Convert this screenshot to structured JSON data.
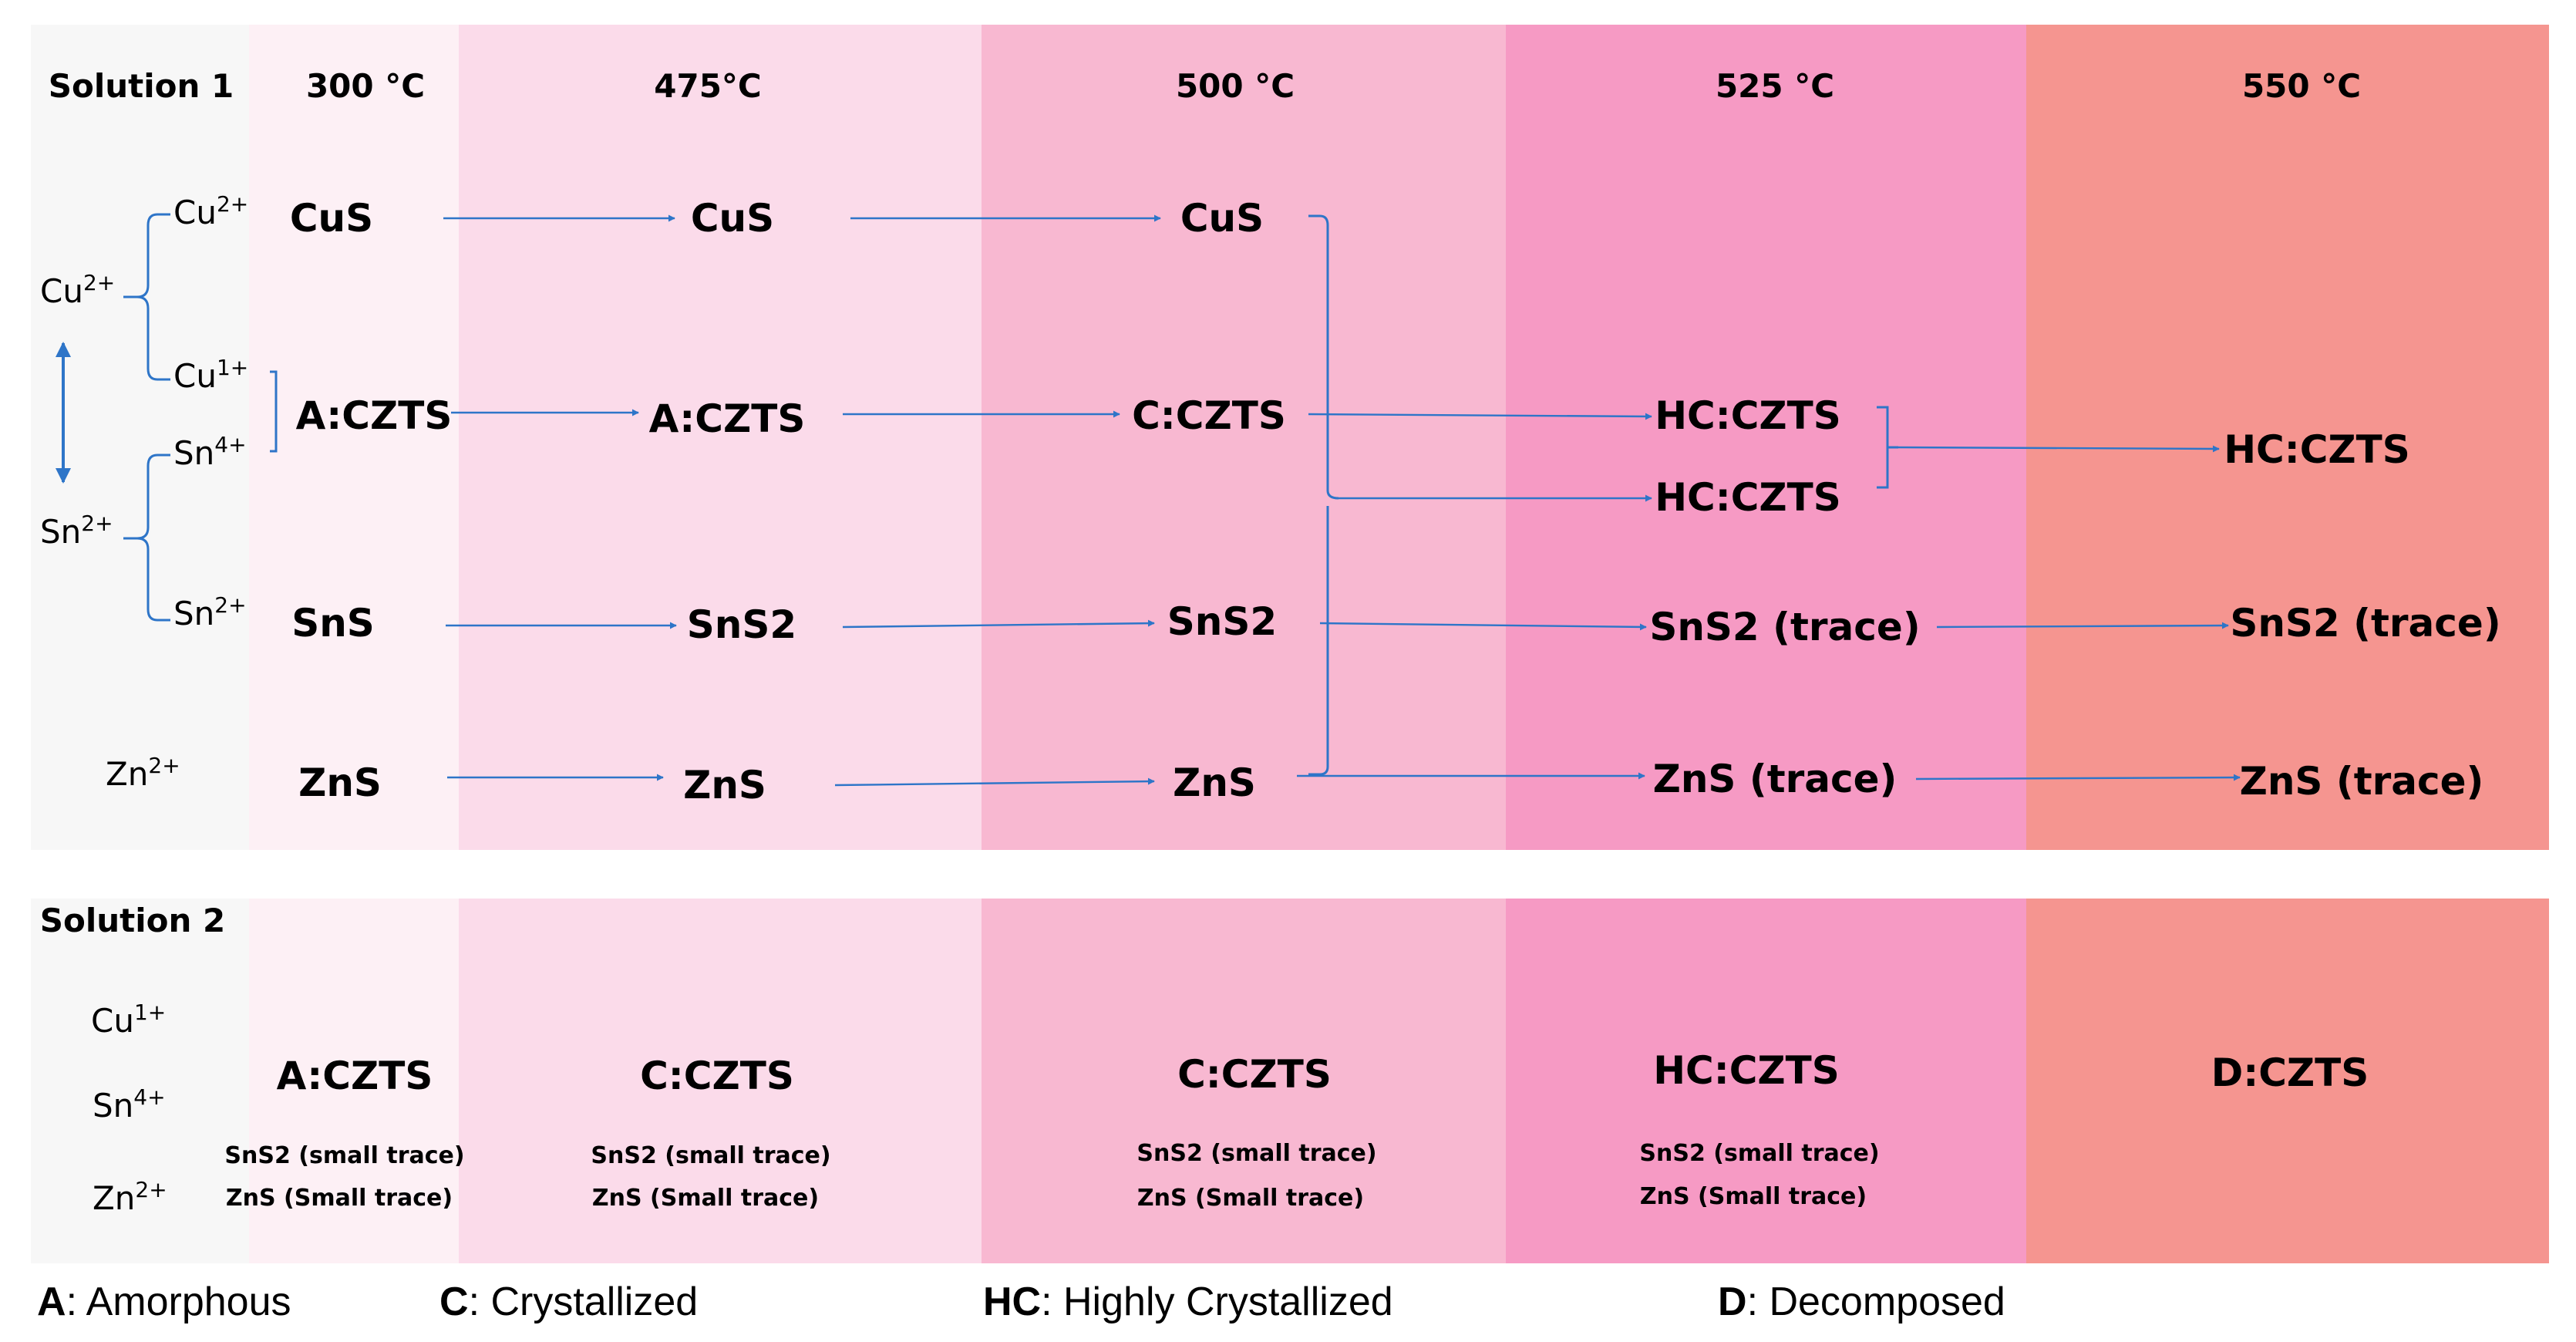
{
  "title_solution1": "Solution 1",
  "title_solution2": "Solution 2",
  "temperatures": [
    "300 °C",
    "475°C",
    "500 °C",
    "525 °C",
    "550 °C"
  ],
  "colors": {
    "ion_panel": "#f7f7f7",
    "t300": "#fdf0f5",
    "t475": "#fbdbea",
    "t500": "#f8b8d1",
    "t525": "#f69ac4",
    "t550": "#f59590",
    "arrow": "#2e75c8"
  },
  "ions_solution1": {
    "cu_top": "Cu",
    "cu_top_charge": "2+",
    "cu_parent": "Cu",
    "cu_parent_charge": "2+",
    "cu_lower": "Cu",
    "cu_lower_charge": "1+",
    "sn_upper": "Sn",
    "sn_upper_charge": "4+",
    "sn_parent": "Sn",
    "sn_parent_charge": "2+",
    "sn_lower": "Sn",
    "sn_lower_charge": "2+",
    "zn": "Zn",
    "zn_charge": "2+"
  },
  "solution1_rows": {
    "cus": [
      "CuS",
      "CuS",
      "CuS"
    ],
    "czts": [
      "A:CZTS",
      "A:CZTS",
      "C:CZTS",
      "HC:CZTS",
      "HC:CZTS"
    ],
    "czts_extra_525": "HC:CZTS",
    "sns": [
      "SnS",
      "SnS2",
      "SnS2",
      "SnS2 (trace)",
      "SnS2 (trace)"
    ],
    "zns": [
      "ZnS",
      "ZnS",
      "ZnS",
      "ZnS (trace)",
      "ZnS (trace)"
    ]
  },
  "ions_solution2": {
    "cu": "Cu",
    "cu_charge": "1+",
    "sn": "Sn",
    "sn_charge": "4+",
    "zn": "Zn",
    "zn_charge": "2+"
  },
  "solution2": {
    "phases": [
      "A:CZTS",
      "C:CZTS",
      "C:CZTS",
      "HC:CZTS",
      "D:CZTS"
    ],
    "trace_sns2": "SnS2 (small trace)",
    "trace_zns": "ZnS (Small trace)"
  },
  "legend": [
    {
      "key": "A",
      "desc": ": Amorphous"
    },
    {
      "key": "C",
      "desc": ": Crystallized"
    },
    {
      "key": "HC",
      "desc": ": Highly Crystallized"
    },
    {
      "key": "D",
      "desc": ": Decomposed"
    }
  ]
}
